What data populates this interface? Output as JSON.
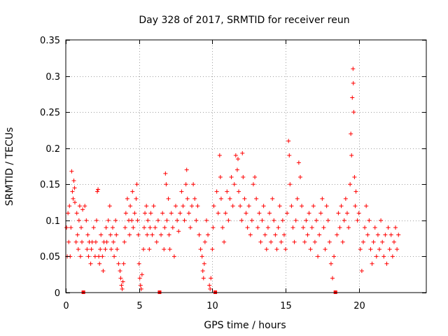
{
  "chart_data": {
    "type": "scatter",
    "title": "Day 328 of 2017, SRMTID for receiver reun",
    "xlabel": "GPS time / hours",
    "ylabel": "SRMTID / TECUs",
    "xlim": [
      0,
      24.6
    ],
    "ylim": [
      0,
      0.35
    ],
    "xticks": [
      0,
      5,
      10,
      15,
      20
    ],
    "xtick_labels": [
      "0",
      "5",
      "10",
      "15",
      "20"
    ],
    "yticks": [
      0,
      0.05,
      0.1,
      0.15,
      0.2,
      0.25,
      0.3,
      0.35
    ],
    "ytick_labels": [
      "0",
      "0.05",
      "0.1",
      "0.15",
      "0.2",
      "0.25",
      "0.3",
      "0.35"
    ],
    "grid": true,
    "marker": "+",
    "color": "#ff0000",
    "data_gaps_x": [
      1.2,
      6.4,
      10.2,
      18.4
    ],
    "series": [
      {
        "name": "SRMTID",
        "points": [
          [
            0.05,
            0.09
          ],
          [
            0.1,
            0.05
          ],
          [
            0.15,
            0.11
          ],
          [
            0.2,
            0.07
          ],
          [
            0.25,
            0.12
          ],
          [
            0.3,
            0.05
          ],
          [
            0.35,
            0.09
          ],
          [
            0.4,
            0.168
          ],
          [
            0.45,
            0.14
          ],
          [
            0.5,
            0.13
          ],
          [
            0.55,
            0.155
          ],
          [
            0.6,
            0.145
          ],
          [
            0.62,
            0.125
          ],
          [
            0.7,
            0.07
          ],
          [
            0.75,
            0.11
          ],
          [
            0.8,
            0.08
          ],
          [
            0.85,
            0.06
          ],
          [
            0.9,
            0.1
          ],
          [
            0.95,
            0.12
          ],
          [
            1.0,
            0.05
          ],
          [
            1.05,
            0.09
          ],
          [
            1.1,
            0.07
          ],
          [
            1.15,
            0.115
          ],
          [
            1.3,
            0.12
          ],
          [
            1.4,
            0.1
          ],
          [
            1.45,
            0.06
          ],
          [
            1.5,
            0.08
          ],
          [
            1.55,
            0.05
          ],
          [
            1.6,
            0.07
          ],
          [
            1.7,
            0.04
          ],
          [
            1.75,
            0.06
          ],
          [
            1.8,
            0.07
          ],
          [
            1.9,
            0.09
          ],
          [
            2.0,
            0.05
          ],
          [
            2.05,
            0.07
          ],
          [
            2.1,
            0.1
          ],
          [
            2.15,
            0.14
          ],
          [
            2.2,
            0.143
          ],
          [
            2.25,
            0.05
          ],
          [
            2.3,
            0.04
          ],
          [
            2.35,
            0.06
          ],
          [
            2.4,
            0.08
          ],
          [
            2.5,
            0.05
          ],
          [
            2.55,
            0.03
          ],
          [
            2.6,
            0.07
          ],
          [
            2.7,
            0.06
          ],
          [
            2.75,
            0.09
          ],
          [
            2.8,
            0.07
          ],
          [
            2.9,
            0.1
          ],
          [
            3.0,
            0.12
          ],
          [
            3.05,
            0.08
          ],
          [
            3.1,
            0.06
          ],
          [
            3.2,
            0.09
          ],
          [
            3.25,
            0.07
          ],
          [
            3.3,
            0.05
          ],
          [
            3.4,
            0.1
          ],
          [
            3.45,
            0.08
          ],
          [
            3.5,
            0.06
          ],
          [
            3.6,
            0.04
          ],
          [
            3.7,
            0.03
          ],
          [
            3.75,
            0.02
          ],
          [
            3.8,
            0.01
          ],
          [
            3.85,
            0.005
          ],
          [
            3.9,
            0.015
          ],
          [
            3.95,
            0.04
          ],
          [
            4.0,
            0.07
          ],
          [
            4.05,
            0.09
          ],
          [
            4.1,
            0.11
          ],
          [
            4.2,
            0.13
          ],
          [
            4.3,
            0.1
          ],
          [
            4.35,
            0.08
          ],
          [
            4.4,
            0.12
          ],
          [
            4.5,
            0.1
          ],
          [
            4.55,
            0.14
          ],
          [
            4.6,
            0.09
          ],
          [
            4.7,
            0.11
          ],
          [
            4.8,
            0.13
          ],
          [
            4.85,
            0.15
          ],
          [
            4.9,
            0.1
          ],
          [
            4.95,
            0.08
          ],
          [
            5.0,
            0.04
          ],
          [
            5.05,
            0.02
          ],
          [
            5.1,
            0.01
          ],
          [
            5.15,
            0.005
          ],
          [
            5.2,
            0.025
          ],
          [
            5.3,
            0.06
          ],
          [
            5.35,
            0.09
          ],
          [
            5.4,
            0.11
          ],
          [
            5.5,
            0.12
          ],
          [
            5.55,
            0.08
          ],
          [
            5.6,
            0.1
          ],
          [
            5.7,
            0.06
          ],
          [
            5.75,
            0.09
          ],
          [
            5.8,
            0.11
          ],
          [
            5.9,
            0.08
          ],
          [
            6.0,
            0.12
          ],
          [
            6.1,
            0.09
          ],
          [
            6.2,
            0.07
          ],
          [
            6.3,
            0.1
          ],
          [
            6.5,
            0.08
          ],
          [
            6.6,
            0.11
          ],
          [
            6.7,
            0.06
          ],
          [
            6.75,
            0.09
          ],
          [
            6.8,
            0.165
          ],
          [
            6.85,
            0.15
          ],
          [
            6.9,
            0.1
          ],
          [
            7.0,
            0.13
          ],
          [
            7.05,
            0.08
          ],
          [
            7.1,
            0.06
          ],
          [
            7.2,
            0.11
          ],
          [
            7.3,
            0.09
          ],
          [
            7.4,
            0.05
          ],
          [
            7.5,
            0.12
          ],
          [
            7.6,
            0.1
          ],
          [
            7.7,
            0.085
          ],
          [
            7.8,
            0.11
          ],
          [
            7.9,
            0.14
          ],
          [
            8.0,
            0.12
          ],
          [
            8.1,
            0.1
          ],
          [
            8.2,
            0.15
          ],
          [
            8.25,
            0.17
          ],
          [
            8.3,
            0.13
          ],
          [
            8.4,
            0.11
          ],
          [
            8.5,
            0.09
          ],
          [
            8.6,
            0.12
          ],
          [
            8.7,
            0.15
          ],
          [
            8.8,
            0.13
          ],
          [
            8.9,
            0.1
          ],
          [
            9.0,
            0.12
          ],
          [
            9.1,
            0.08
          ],
          [
            9.2,
            0.06
          ],
          [
            9.3,
            0.05
          ],
          [
            9.35,
            0.03
          ],
          [
            9.4,
            0.02
          ],
          [
            9.45,
            0.04
          ],
          [
            9.5,
            0.07
          ],
          [
            9.6,
            0.1
          ],
          [
            9.7,
            0.08
          ],
          [
            9.8,
            0.01
          ],
          [
            9.85,
            0.005
          ],
          [
            9.9,
            0.02
          ],
          [
            10.0,
            0.06
          ],
          [
            10.05,
            0.09
          ],
          [
            10.1,
            0.12
          ],
          [
            10.3,
            0.14
          ],
          [
            10.4,
            0.11
          ],
          [
            10.5,
            0.19
          ],
          [
            10.55,
            0.16
          ],
          [
            10.6,
            0.13
          ],
          [
            10.7,
            0.09
          ],
          [
            10.8,
            0.07
          ],
          [
            10.9,
            0.11
          ],
          [
            11.0,
            0.14
          ],
          [
            11.1,
            0.1
          ],
          [
            11.2,
            0.13
          ],
          [
            11.3,
            0.16
          ],
          [
            11.4,
            0.12
          ],
          [
            11.5,
            0.15
          ],
          [
            11.6,
            0.19
          ],
          [
            11.7,
            0.17
          ],
          [
            11.75,
            0.185
          ],
          [
            11.8,
            0.14
          ],
          [
            11.9,
            0.12
          ],
          [
            12.0,
            0.1
          ],
          [
            12.05,
            0.193
          ],
          [
            12.1,
            0.16
          ],
          [
            12.2,
            0.13
          ],
          [
            12.3,
            0.11
          ],
          [
            12.4,
            0.09
          ],
          [
            12.5,
            0.12
          ],
          [
            12.6,
            0.08
          ],
          [
            12.7,
            0.1
          ],
          [
            12.8,
            0.15
          ],
          [
            12.9,
            0.16
          ],
          [
            13.0,
            0.13
          ],
          [
            13.1,
            0.09
          ],
          [
            13.2,
            0.11
          ],
          [
            13.3,
            0.07
          ],
          [
            13.4,
            0.1
          ],
          [
            13.5,
            0.12
          ],
          [
            13.6,
            0.08
          ],
          [
            13.7,
            0.06
          ],
          [
            13.8,
            0.09
          ],
          [
            13.9,
            0.11
          ],
          [
            14.0,
            0.07
          ],
          [
            14.1,
            0.13
          ],
          [
            14.2,
            0.1
          ],
          [
            14.3,
            0.08
          ],
          [
            14.4,
            0.06
          ],
          [
            14.5,
            0.09
          ],
          [
            14.6,
            0.12
          ],
          [
            14.7,
            0.07
          ],
          [
            14.8,
            0.1
          ],
          [
            14.9,
            0.08
          ],
          [
            15.0,
            0.06
          ],
          [
            15.1,
            0.11
          ],
          [
            15.2,
            0.21
          ],
          [
            15.25,
            0.19
          ],
          [
            15.3,
            0.15
          ],
          [
            15.4,
            0.12
          ],
          [
            15.5,
            0.09
          ],
          [
            15.6,
            0.07
          ],
          [
            15.7,
            0.1
          ],
          [
            15.8,
            0.13
          ],
          [
            15.9,
            0.18
          ],
          [
            16.0,
            0.16
          ],
          [
            16.1,
            0.12
          ],
          [
            16.2,
            0.09
          ],
          [
            16.3,
            0.07
          ],
          [
            16.4,
            0.1
          ],
          [
            16.5,
            0.08
          ],
          [
            16.6,
            0.11
          ],
          [
            16.7,
            0.06
          ],
          [
            16.8,
            0.09
          ],
          [
            16.9,
            0.12
          ],
          [
            17.0,
            0.07
          ],
          [
            17.1,
            0.1
          ],
          [
            17.2,
            0.05
          ],
          [
            17.3,
            0.08
          ],
          [
            17.4,
            0.11
          ],
          [
            17.5,
            0.13
          ],
          [
            17.6,
            0.09
          ],
          [
            17.7,
            0.06
          ],
          [
            17.8,
            0.12
          ],
          [
            17.9,
            0.1
          ],
          [
            18.0,
            0.07
          ],
          [
            18.1,
            0.04
          ],
          [
            18.2,
            0.02
          ],
          [
            18.3,
            0.05
          ],
          [
            18.5,
            0.08
          ],
          [
            18.6,
            0.11
          ],
          [
            18.7,
            0.09
          ],
          [
            18.8,
            0.12
          ],
          [
            18.9,
            0.07
          ],
          [
            19.0,
            0.1
          ],
          [
            19.1,
            0.13
          ],
          [
            19.2,
            0.11
          ],
          [
            19.3,
            0.09
          ],
          [
            19.4,
            0.15
          ],
          [
            19.45,
            0.22
          ],
          [
            19.5,
            0.19
          ],
          [
            19.55,
            0.27
          ],
          [
            19.6,
            0.31
          ],
          [
            19.62,
            0.29
          ],
          [
            19.65,
            0.25
          ],
          [
            19.7,
            0.16
          ],
          [
            19.75,
            0.12
          ],
          [
            19.8,
            0.14
          ],
          [
            19.9,
            0.1
          ],
          [
            20.0,
            0.11
          ],
          [
            20.1,
            0.06
          ],
          [
            20.2,
            0.03
          ],
          [
            20.3,
            0.07
          ],
          [
            20.4,
            0.09
          ],
          [
            20.5,
            0.12
          ],
          [
            20.6,
            0.08
          ],
          [
            20.7,
            0.1
          ],
          [
            20.8,
            0.06
          ],
          [
            20.9,
            0.04
          ],
          [
            21.0,
            0.07
          ],
          [
            21.1,
            0.09
          ],
          [
            21.2,
            0.05
          ],
          [
            21.3,
            0.08
          ],
          [
            21.4,
            0.06
          ],
          [
            21.5,
            0.1
          ],
          [
            21.6,
            0.07
          ],
          [
            21.7,
            0.05
          ],
          [
            21.8,
            0.08
          ],
          [
            21.9,
            0.04
          ],
          [
            22.0,
            0.09
          ],
          [
            22.1,
            0.06
          ],
          [
            22.2,
            0.08
          ],
          [
            22.3,
            0.05
          ],
          [
            22.4,
            0.07
          ],
          [
            22.5,
            0.09
          ],
          [
            22.6,
            0.06
          ],
          [
            22.7,
            0.08
          ]
        ]
      }
    ]
  }
}
